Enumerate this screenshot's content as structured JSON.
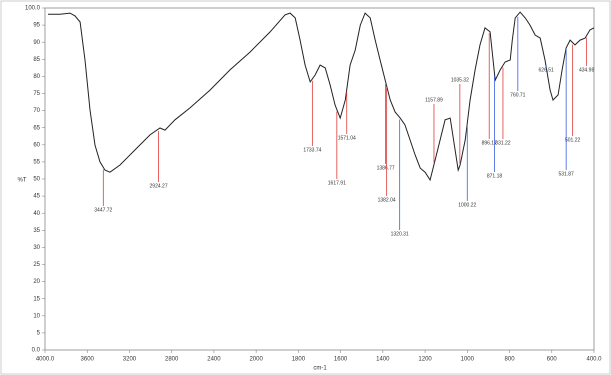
{
  "chart_data": {
    "type": "line",
    "x_label": "cm-1",
    "y_label": "%T",
    "xlim": [
      4000,
      400
    ],
    "ylim": [
      0,
      100
    ],
    "xticks": [
      {
        "value": 4000,
        "label": "4000.0"
      },
      3600,
      3200,
      2800,
      2400,
      2000,
      1800,
      1600,
      1400,
      1200,
      1000,
      800,
      600,
      {
        "value": 400,
        "label": "400.0"
      }
    ],
    "yticks": [
      {
        "value": 0,
        "label": "0.0"
      },
      5,
      10,
      15,
      20,
      25,
      30,
      35,
      40,
      45,
      50,
      55,
      60,
      65,
      70,
      75,
      80,
      85,
      90,
      95,
      {
        "value": 100,
        "label": "100.0"
      }
    ],
    "color": "#222222",
    "x": [
      3972,
      3858,
      3763,
      3716,
      3668,
      3621,
      3574,
      3526,
      3479,
      3432,
      3384,
      3290,
      3148,
      3005,
      2911,
      2863,
      2769,
      2627,
      2437,
      2248,
      2058,
      1934,
      1863,
      1839,
      1815,
      1792,
      1768,
      1744,
      1721,
      1697,
      1673,
      1650,
      1626,
      1602,
      1578,
      1555,
      1531,
      1507,
      1484,
      1460,
      1436,
      1413,
      1389,
      1365,
      1342,
      1318,
      1295,
      1271,
      1247,
      1223,
      1200,
      1176,
      1152,
      1129,
      1105,
      1081,
      1058,
      1043,
      1034,
      1010,
      987,
      963,
      940,
      916,
      892,
      868,
      844,
      821,
      797,
      787,
      773,
      750,
      726,
      703,
      679,
      655,
      632,
      608,
      594,
      570,
      551,
      532,
      513,
      490,
      466,
      442,
      419,
      400
    ],
    "values": [
      98.2,
      98.2,
      98.5,
      97.7,
      95.9,
      84.8,
      70.2,
      59.9,
      55.0,
      52.6,
      52.0,
      54.1,
      58.5,
      62.9,
      64.9,
      64.3,
      67.3,
      70.8,
      76.0,
      81.9,
      87.1,
      93.0,
      98.0,
      98.5,
      97.1,
      90.6,
      83.3,
      78.4,
      80.4,
      83.3,
      82.5,
      77.5,
      71.6,
      67.8,
      73.1,
      83.3,
      87.7,
      95.0,
      98.5,
      97.1,
      90.6,
      84.8,
      78.9,
      73.1,
      69.6,
      67.8,
      65.8,
      61.4,
      57.0,
      53.2,
      52.0,
      49.7,
      55.6,
      61.4,
      67.3,
      67.8,
      58.5,
      52.6,
      54.1,
      61.4,
      73.1,
      81.9,
      89.2,
      94.2,
      93.0,
      78.9,
      81.9,
      84.2,
      84.8,
      90.6,
      97.1,
      98.8,
      97.1,
      95.0,
      92.1,
      91.2,
      84.8,
      76.0,
      73.1,
      74.6,
      81.9,
      88.3,
      90.6,
      89.2,
      90.6,
      91.2,
      93.6,
      94.2
    ],
    "peaks": [
      {
        "x": 3447.72,
        "color": "#e23b3b"
      },
      {
        "x": 2924.27,
        "color": "#e23b3b"
      },
      {
        "x": 1733.74,
        "color": "#e23b3b"
      },
      {
        "x": 1617.91,
        "color": "#e23b3b"
      },
      {
        "x": 1571.04,
        "color": "#e23b3b"
      },
      {
        "x": 1386.77,
        "color": "#3b5fe2"
      },
      {
        "x": 1382.04,
        "color": "#e23b3b"
      },
      {
        "x": 1320.31,
        "color": "#3b5fe2"
      },
      {
        "x": 1157.89,
        "color": "#e23b3b"
      },
      {
        "x": 1035.32,
        "color": "#e23b3b"
      },
      {
        "x": 1000.22,
        "color": "#3b5fe2"
      },
      {
        "x": 896.17,
        "color": "#e23b3b"
      },
      {
        "x": 871.18,
        "color": "#3b5fe2"
      },
      {
        "x": 831.22,
        "color": "#e23b3b"
      },
      {
        "x": 760.71,
        "color": "#3b5fe2"
      },
      {
        "x": 626.51,
        "color": "#3b5fe2"
      },
      {
        "x": 531.87,
        "color": "#3b5fe2"
      },
      {
        "x": 501.22,
        "color": "#e23b3b"
      },
      {
        "x": 434.98,
        "color": "#e23b3b"
      }
    ]
  }
}
